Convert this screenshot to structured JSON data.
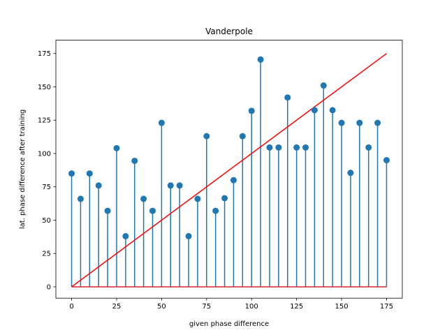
{
  "chart_data": {
    "type": "stem",
    "title": "Vanderpole",
    "xlabel": "given phase difference",
    "ylabel": "lat. phase difference after training",
    "xlim": [
      -8.75,
      183.75
    ],
    "ylim": [
      -8.5,
      185
    ],
    "xticks": [
      0,
      25,
      50,
      75,
      100,
      125,
      150,
      175
    ],
    "yticks": [
      0,
      25,
      50,
      75,
      100,
      125,
      150,
      175
    ],
    "x": [
      0,
      5,
      10,
      15,
      20,
      25,
      30,
      35,
      40,
      45,
      50,
      55,
      60,
      65,
      70,
      75,
      80,
      85,
      90,
      95,
      100,
      105,
      110,
      115,
      120,
      125,
      130,
      135,
      140,
      145,
      150,
      155,
      160,
      165,
      170,
      175
    ],
    "series": [
      {
        "kind": "stem",
        "values": [
          85,
          66,
          85,
          76,
          57,
          104,
          38,
          94.5,
          66,
          57,
          123,
          76,
          76,
          38,
          66,
          113,
          57,
          66.5,
          80,
          113,
          132,
          170.5,
          104.5,
          104.5,
          142,
          104.5,
          104.5,
          132.5,
          151,
          132.5,
          123,
          85.5,
          123,
          104.5,
          123,
          95
        ],
        "color": "#1f77b4",
        "baseline": 0,
        "baseline_color": "#d62728"
      },
      {
        "kind": "line",
        "x": [
          0,
          175
        ],
        "values": [
          0,
          175
        ],
        "color": "#ff0000"
      }
    ],
    "grid": false
  }
}
